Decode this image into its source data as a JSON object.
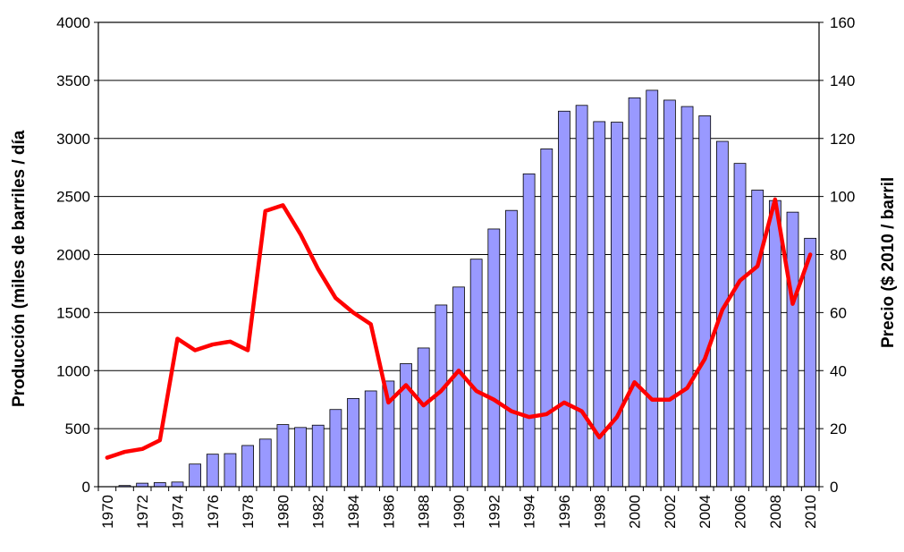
{
  "chart_data": {
    "type": "bar+line",
    "title": "",
    "xlabel": "",
    "ylabel_left": "Producción (miles de barriles / día",
    "ylabel_right": "Precio ($ 2010 / barril",
    "ylim_left": [
      0,
      4000
    ],
    "ylim_right": [
      0,
      160
    ],
    "yticks_left": [
      "0",
      "500",
      "1000",
      "1500",
      "2000",
      "2500",
      "3000",
      "3500",
      "4000"
    ],
    "yticks_right": [
      "0",
      "20",
      "40",
      "60",
      "80",
      "100",
      "120",
      "140",
      "160"
    ],
    "xtick_labels": [
      "1970",
      "1972",
      "1974",
      "1976",
      "1978",
      "1980",
      "1982",
      "1984",
      "1986",
      "1988",
      "1990",
      "1992",
      "1994",
      "1996",
      "1998",
      "2000",
      "2002",
      "2004",
      "2006",
      "2008",
      "2010"
    ],
    "grid": "horizontal",
    "colors": {
      "bar_fill": "#9999ff",
      "bar_stroke": "#000000",
      "line": "#ff0000",
      "grid": "#000000"
    },
    "years": [
      1970,
      1971,
      1972,
      1973,
      1974,
      1975,
      1976,
      1977,
      1978,
      1979,
      1980,
      1981,
      1982,
      1983,
      1984,
      1985,
      1986,
      1987,
      1988,
      1989,
      1990,
      1991,
      1992,
      1993,
      1994,
      1995,
      1996,
      1997,
      1998,
      1999,
      2000,
      2001,
      2002,
      2003,
      2004,
      2005,
      2006,
      2007,
      2008,
      2009,
      2010
    ],
    "series": [
      {
        "type": "bar",
        "axis": "left",
        "values": [
          0,
          10,
          30,
          35,
          40,
          195,
          280,
          285,
          355,
          410,
          535,
          510,
          530,
          665,
          760,
          825,
          910,
          1060,
          1195,
          1565,
          1720,
          1960,
          2220,
          2380,
          2695,
          2910,
          3235,
          3285,
          3145,
          3140,
          3350,
          3415,
          3330,
          3275,
          3195,
          2975,
          2785,
          2555,
          2465,
          2365,
          2140
        ]
      },
      {
        "type": "line",
        "axis": "right",
        "values": [
          10,
          12,
          13,
          16,
          51,
          47,
          49,
          50,
          47,
          95,
          97,
          87,
          75,
          65,
          60,
          56,
          29,
          35,
          28,
          33,
          40,
          33,
          30,
          26,
          24,
          25,
          29,
          26,
          17,
          24,
          36,
          30,
          30,
          34,
          44,
          61,
          71,
          76,
          99,
          63,
          80
        ]
      }
    ]
  }
}
